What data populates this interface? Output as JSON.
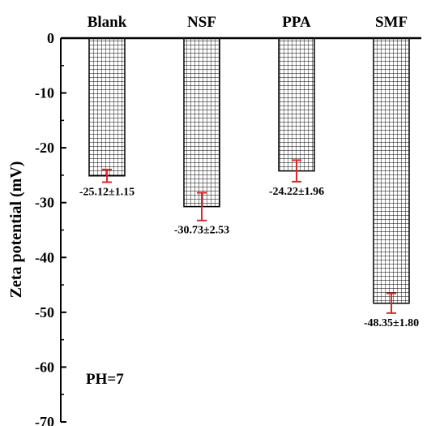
{
  "chart_data": {
    "type": "bar",
    "categories": [
      "Blank",
      "NSF",
      "PPA",
      "SMF"
    ],
    "values": [
      -25.12,
      -30.73,
      -24.22,
      -48.35
    ],
    "errors": [
      1.15,
      2.53,
      1.96,
      1.8
    ],
    "data_labels": [
      "-25.12±1.15",
      "-30.73±2.53",
      "-24.22±1.96",
      "-48.35±1.80"
    ],
    "ylabel": "Zeta potential (mV)",
    "xlabel": "",
    "ylim": [
      -70,
      0
    ],
    "yticks": [
      0,
      -10,
      -20,
      -30,
      -40,
      -50,
      -60,
      -70
    ],
    "ytick_labels": [
      "0",
      "-10",
      "-20",
      "-30",
      "-40",
      "-50",
      "-60",
      "-70"
    ],
    "annotation": "PH=7",
    "category_position": "top",
    "bar_fill": "grid pattern",
    "colors": {
      "bar_pattern": "#000000",
      "bar_background": "#ffffff",
      "error_bar": "#e0262b",
      "axis": "#000000"
    },
    "grid": false,
    "legend": "none"
  }
}
